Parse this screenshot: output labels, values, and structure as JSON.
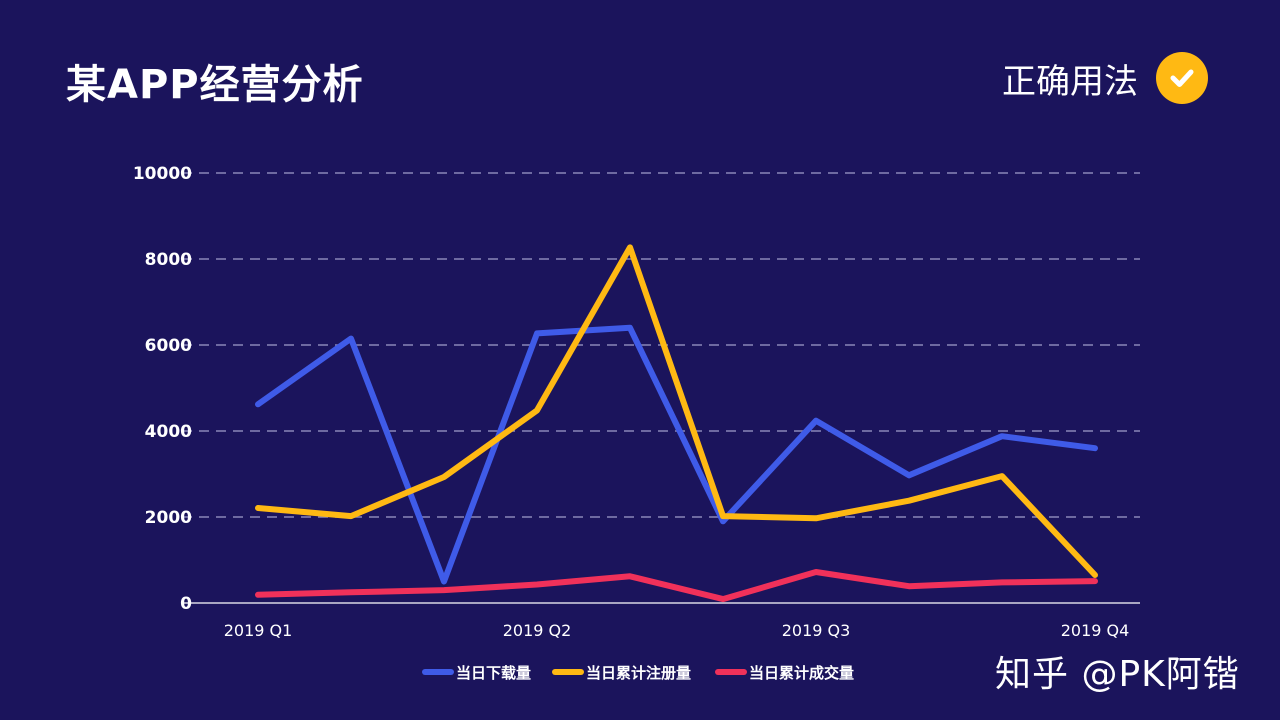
{
  "header": {
    "title": "某APP经营分析",
    "badge_label": "正确用法",
    "badge_icon": "check-icon"
  },
  "watermark": "知乎 @PK阿锴",
  "colors": {
    "background": "#1b145c",
    "grid": "#8a86b8",
    "axis": "#ffffff",
    "badge": "#ffb913"
  },
  "chart_data": {
    "type": "line",
    "title": "",
    "xlabel": "",
    "ylabel": "",
    "x": [
      "2019 Q1",
      "",
      "",
      "2019 Q2",
      "",
      "",
      "2019 Q3",
      "",
      "",
      "2019 Q4"
    ],
    "xtick_labels": [
      "2019 Q1",
      "2019 Q2",
      "2019 Q3",
      "2019 Q4"
    ],
    "ylim": [
      0,
      10000
    ],
    "yticks": [
      0,
      2000,
      4000,
      6000,
      8000,
      10000
    ],
    "grid": true,
    "legend_position": "bottom",
    "series": [
      {
        "name": "当日下载量",
        "color": "#3f5be8",
        "values": [
          4620,
          6150,
          500,
          6270,
          6400,
          1900,
          4240,
          2970,
          3880,
          3600
        ]
      },
      {
        "name": "当日累计注册量",
        "color": "#ffb913",
        "values": [
          2210,
          2020,
          2930,
          4480,
          8270,
          2020,
          1970,
          2380,
          2950,
          650
        ]
      },
      {
        "name": "当日累计成交量",
        "color": "#f0315a",
        "values": [
          190,
          250,
          300,
          430,
          620,
          90,
          720,
          390,
          480,
          510
        ]
      }
    ]
  }
}
